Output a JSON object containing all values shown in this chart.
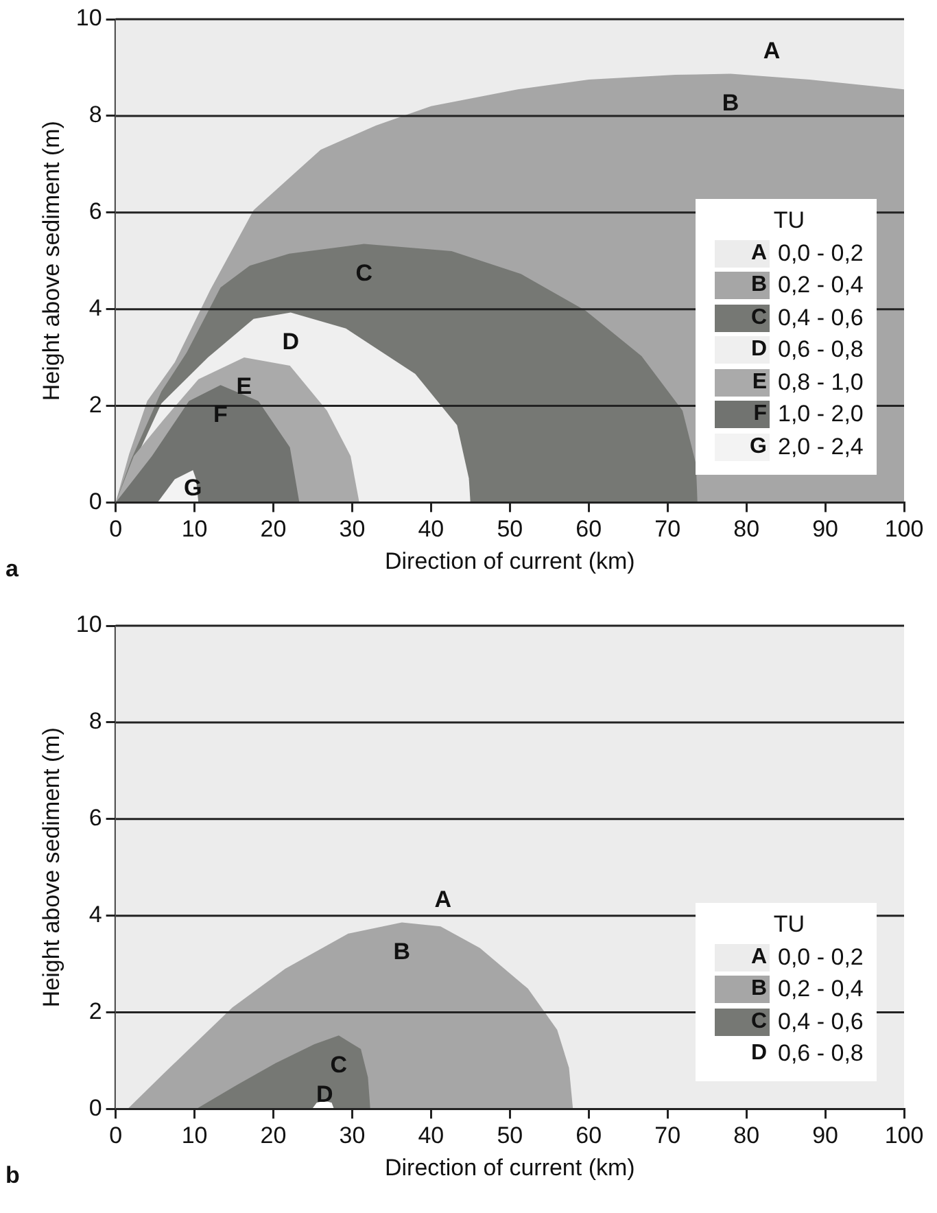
{
  "chart_data": [
    {
      "type": "area",
      "xlabel": "Direction of current (km)",
      "ylabel": "Height above sediment (m)",
      "legend_title": "TU",
      "xlim": [
        0,
        100
      ],
      "ylim": [
        0,
        10
      ],
      "xticks": [
        0,
        10,
        20,
        30,
        40,
        50,
        60,
        70,
        80,
        90,
        100
      ],
      "yticks": [
        0,
        2,
        4,
        6,
        8,
        10
      ],
      "grid": "y",
      "legend": "bottom right",
      "series": [
        {
          "name": "0,0 - 0,2",
          "color": "#ececec"
        },
        {
          "name": "0,2 - 0,4",
          "color": "#a6a6a6",
          "x": [
            0,
            1.7,
            4,
            7.5,
            12,
            17.5,
            26,
            33,
            40,
            51,
            60,
            71,
            78,
            88,
            100
          ],
          "values": [
            0,
            1,
            2.1,
            2.9,
            4.4,
            6.05,
            7.3,
            7.8,
            8.2,
            8.55,
            8.75,
            8.85,
            8.87,
            8.75,
            8.55
          ]
        },
        {
          "name": "0,4 - 0,6",
          "color": "#767874",
          "x": [
            0,
            2,
            5.8,
            9,
            13.3,
            17,
            22,
            31.5,
            42.6,
            51.4,
            59.6,
            66.7,
            71.9,
            73.6,
            73.8
          ],
          "values": [
            0,
            0.9,
            2.3,
            3.1,
            4.45,
            4.9,
            5.15,
            5.35,
            5.2,
            4.73,
            3.97,
            3.03,
            1.9,
            0.8,
            0
          ]
        },
        {
          "name": "0,6 - 0,8",
          "color": "#efefef",
          "x": [
            0,
            5.8,
            11.7,
            17.5,
            22.2,
            29.2,
            38,
            43.3,
            44.8,
            45
          ],
          "values": [
            0,
            2.05,
            3,
            3.8,
            3.93,
            3.6,
            2.66,
            1.6,
            0.5,
            0
          ]
        },
        {
          "name": "0,8 - 1,0",
          "color": "#aaaaaa",
          "x": [
            0,
            2.3,
            6,
            10.5,
            16.3,
            22.1,
            26.8,
            29.8,
            30.9
          ],
          "values": [
            0,
            0.96,
            1.7,
            2.55,
            3,
            2.83,
            1.9,
            0.96,
            0
          ]
        },
        {
          "name": "1,0 - 2,0",
          "color": "#717370",
          "x": [
            0,
            4.6,
            9.3,
            13.3,
            18.1,
            22.1,
            23.3
          ],
          "values": [
            0,
            0.96,
            2.1,
            2.43,
            2.1,
            1.14,
            0
          ]
        },
        {
          "name": "2,0 - 2,4",
          "color": "#f3f3f3",
          "x": [
            5.3,
            7.5,
            9.8,
            10.2,
            10.5
          ],
          "values": [
            0,
            0.48,
            0.67,
            0.48,
            0
          ]
        }
      ],
      "annotations": [
        "A",
        "B",
        "C",
        "D",
        "E",
        "F",
        "G",
        "a"
      ]
    },
    {
      "type": "area",
      "xlabel": "Direction of current (km)",
      "ylabel": "Height above sediment (m)",
      "legend_title": "TU",
      "xlim": [
        0,
        100
      ],
      "ylim": [
        0,
        10
      ],
      "xticks": [
        0,
        10,
        20,
        30,
        40,
        50,
        60,
        70,
        80,
        90,
        100
      ],
      "yticks": [
        0,
        2,
        4,
        6,
        8,
        10
      ],
      "grid": "y",
      "legend": "bottom right",
      "series": [
        {
          "name": "0,0 - 0,2",
          "color": "#ececec"
        },
        {
          "name": "0,2 - 0,4",
          "color": "#a6a6a6",
          "x": [
            1.5,
            6.2,
            14.8,
            21.5,
            29.5,
            36.3,
            41.2,
            46.2,
            52.3,
            56,
            57.5,
            58
          ],
          "values": [
            0,
            0.75,
            2.1,
            2.9,
            3.63,
            3.86,
            3.78,
            3.33,
            2.49,
            1.64,
            0.85,
            0
          ]
        },
        {
          "name": "0,4 - 0,6",
          "color": "#767874",
          "x": [
            10.2,
            15.4,
            20.3,
            25.2,
            28.3,
            31.1,
            32,
            32.3
          ],
          "values": [
            0,
            0.5,
            0.95,
            1.34,
            1.52,
            1.24,
            0.65,
            0
          ]
        },
        {
          "name": "0,6 - 0,8",
          "color": "#ffffff",
          "x": [
            24.9,
            25.5,
            26.5,
            27.4,
            27.7
          ],
          "values": [
            0,
            0.13,
            0.17,
            0.13,
            0
          ]
        }
      ],
      "annotations": [
        "A",
        "B",
        "C",
        "D",
        "b"
      ]
    }
  ]
}
